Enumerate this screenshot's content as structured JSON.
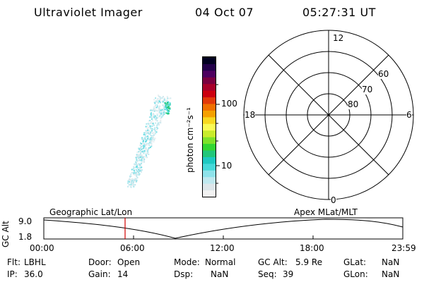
{
  "header": {
    "instrument": "Ultraviolet Imager",
    "date": "04 Oct 07",
    "time": "05:27:31 UT"
  },
  "colorbar": {
    "unit_label": "photon cm⁻²s⁻¹",
    "tick_100": "100",
    "tick_10": "10",
    "colors": [
      "#f2f2f2",
      "#dde6ea",
      "#bfe8ef",
      "#8ee2ea",
      "#47d9d9",
      "#1ec9c2",
      "#22c77a",
      "#33d633",
      "#7ee22a",
      "#c9ec2c",
      "#fafa55",
      "#f8d820",
      "#f5a000",
      "#f07000",
      "#e23a0a",
      "#cc0010",
      "#a8002a",
      "#7a0040",
      "#4e0060",
      "#22004a",
      "#000020"
    ]
  },
  "polar_plot": {
    "mlt_top": "12",
    "mlt_left": "18",
    "mlt_right": "6",
    "mlt_bottom": "0",
    "lat_60": "60",
    "lat_70": "70",
    "lat_80": "80"
  },
  "timeline": {
    "left_title": "Geographic Lat/Lon",
    "right_title": "Apex  MLat/MLT",
    "y_axis_label": "GC Alt",
    "y_max": "9.0",
    "y_min": "1.8",
    "x_ticks": [
      "00:00",
      "06:00",
      "12:00",
      "18:00",
      "23:59"
    ],
    "current_time_color": "#d00000"
  },
  "status": {
    "flt_label": "Flt:",
    "flt_value": "LBHL",
    "ip_label": "IP:",
    "ip_value": "36.0",
    "door_label": "Door:",
    "door_value": "Open",
    "gain_label": "Gain:",
    "gain_value": "14",
    "mode_label": "Mode:",
    "mode_value": "Normal",
    "dsp_label": "Dsp:",
    "dsp_value": "NaN",
    "gcalt_label": "GC Alt:",
    "gcalt_value": "5.9 Re",
    "seq_label": "Seq:",
    "seq_value": "39",
    "glat_label": "GLat:",
    "glat_value": "NaN",
    "glon_label": "GLon:",
    "glon_value": "NaN"
  }
}
